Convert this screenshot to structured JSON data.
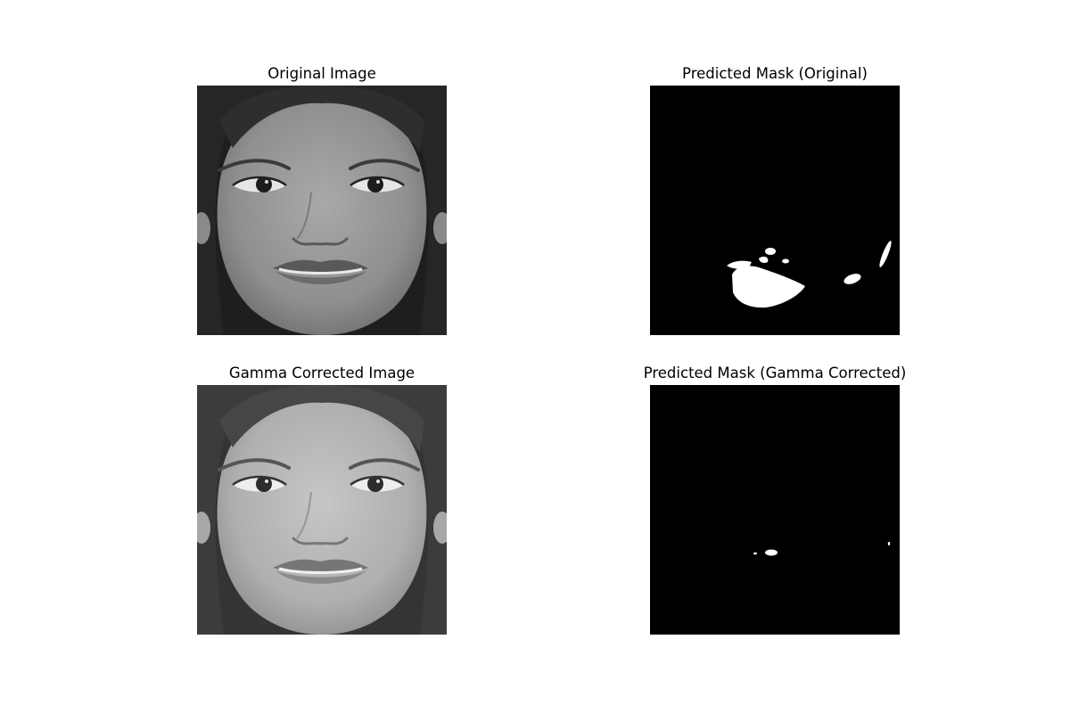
{
  "figure": {
    "panels": [
      {
        "title": "Original Image"
      },
      {
        "title": "Predicted Mask (Original)"
      },
      {
        "title": "Gamma Corrected Image"
      },
      {
        "title": "Predicted Mask (Gamma Corrected)"
      }
    ]
  },
  "colors": {
    "background": "#ffffff",
    "mask_background": "#000000",
    "mask_foreground": "#ffffff",
    "photo_tone": "grayscale"
  }
}
